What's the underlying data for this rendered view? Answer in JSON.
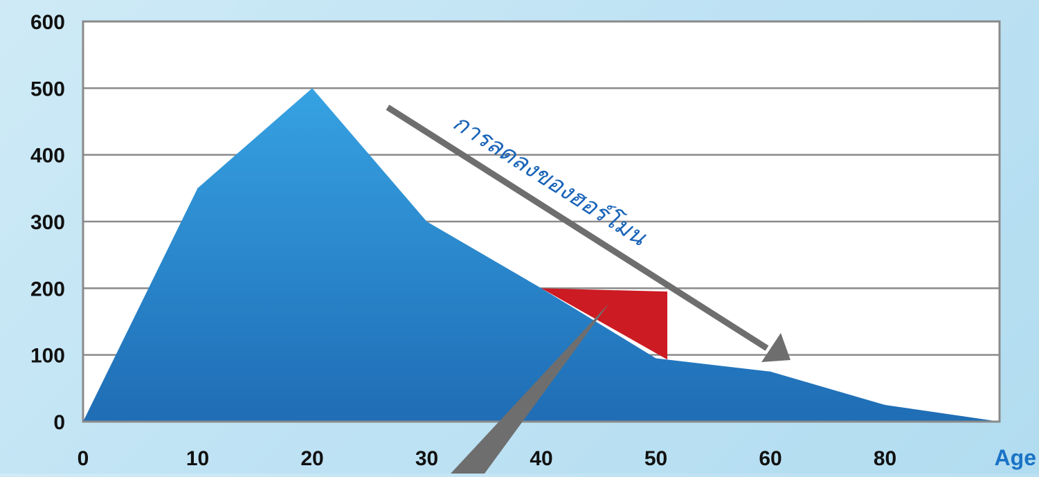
{
  "chart_data": {
    "type": "area",
    "x": [
      0,
      10,
      20,
      30,
      40,
      50,
      60,
      80,
      90
    ],
    "y": [
      0,
      350,
      500,
      300,
      200,
      95,
      75,
      25,
      0
    ],
    "xticks": [
      "0",
      "10",
      "20",
      "30",
      "40",
      "50",
      "60",
      "80"
    ],
    "yticks": [
      "0",
      "100",
      "200",
      "300",
      "400",
      "500",
      "600"
    ],
    "xlabel": "Age",
    "ylabel": "",
    "title": "",
    "ylim": [
      0,
      600
    ],
    "grid": true,
    "annotation": "การลดลงของฮอร์โมน",
    "highlight": {
      "x": [
        40,
        51
      ],
      "y_top": 195
    },
    "colors": {
      "area_top": "#36a2e2",
      "area_bottom": "#1f6db5",
      "highlight": "#cc1b23",
      "arrow": "#6e6e6e",
      "grid": "#8a8a8a",
      "plot_bg": "#ffffff",
      "annotation": "#1a64b8",
      "age_label": "#1a73c6"
    }
  }
}
